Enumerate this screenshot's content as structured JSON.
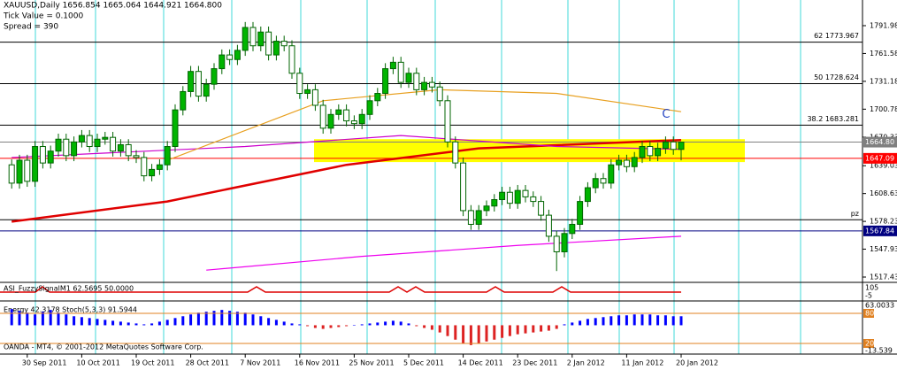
{
  "chart_data": {
    "type": "candlestick",
    "title": "XAUUSD,Daily  1656.854 1665.064 1644.921 1664.800",
    "info": [
      "Tick Value = 0.1000",
      "Spread = 390"
    ],
    "categories": [
      null,
      null,
      "30 Sep 2011",
      null,
      null,
      null,
      null,
      null,
      null,
      "10 Oct 2011",
      null,
      null,
      null,
      null,
      null,
      null,
      "19 Oct 2011",
      null,
      null,
      null,
      null,
      null,
      null,
      "28 Oct 2011",
      null,
      null,
      null,
      null,
      null,
      null,
      "7 Nov 2011",
      null,
      null,
      null,
      null,
      null,
      null,
      "16 Nov 2011",
      null,
      null,
      null,
      null,
      null,
      null,
      "25 Nov 2011",
      null,
      null,
      null,
      null,
      null,
      null,
      "5 Dec 2011",
      null,
      null,
      null,
      null,
      null,
      null,
      "14 Dec 2011",
      null,
      null,
      null,
      null,
      null,
      null,
      "23 Dec 2011",
      null,
      null,
      null,
      null,
      null,
      null,
      "2 Jan 2012",
      null,
      null,
      null,
      null,
      null,
      null,
      "11 Jan 2012",
      null,
      null,
      null,
      null,
      null,
      null,
      "20 Jan 2012"
    ],
    "open": [
      1640,
      1620,
      1645,
      1622,
      1660,
      1642,
      1655,
      1668,
      1650,
      1665,
      1672,
      1660,
      1668,
      1670,
      1655,
      1662,
      1650,
      1648,
      1628,
      1635,
      1640,
      1660,
      1700,
      1720,
      1742,
      1715,
      1728,
      1745,
      1760,
      1755,
      1765,
      1790,
      1770,
      1785,
      1760,
      1775,
      1770,
      1740,
      1718,
      1722,
      1705,
      1680,
      1695,
      1700,
      1688,
      1685,
      1695,
      1710,
      1718,
      1745,
      1752,
      1730,
      1740,
      1722,
      1730,
      1725,
      1710,
      1665,
      1642,
      1590,
      1575,
      1590,
      1595,
      1602,
      1610,
      1598,
      1612,
      1605,
      1600,
      1585,
      1562,
      1545,
      1565,
      1575,
      1600,
      1615,
      1625,
      1620,
      1640,
      1645,
      1638,
      1648,
      1660,
      1650,
      1658,
      1665,
      1656.854
    ],
    "high": [
      1646,
      1651,
      1651,
      1666,
      1666,
      1661,
      1674,
      1674,
      1671,
      1678,
      1678,
      1674,
      1676,
      1676,
      1668,
      1668,
      1656,
      1654,
      1641,
      1646,
      1666,
      1706,
      1726,
      1748,
      1748,
      1734,
      1751,
      1766,
      1766,
      1771,
      1796,
      1796,
      1791,
      1791,
      1781,
      1781,
      1776,
      1746,
      1728,
      1728,
      1711,
      1701,
      1706,
      1706,
      1694,
      1701,
      1716,
      1724,
      1751,
      1758,
      1758,
      1746,
      1746,
      1736,
      1736,
      1731,
      1716,
      1671,
      1648,
      1596,
      1596,
      1601,
      1608,
      1616,
      1616,
      1618,
      1618,
      1611,
      1606,
      1591,
      1568,
      1571,
      1581,
      1606,
      1621,
      1631,
      1631,
      1646,
      1651,
      1651,
      1654,
      1666,
      1666,
      1664,
      1671,
      1671,
      1665.064
    ],
    "low": [
      1614,
      1614,
      1616,
      1616,
      1636,
      1636,
      1649,
      1644,
      1644,
      1659,
      1654,
      1654,
      1662,
      1649,
      1649,
      1644,
      1642,
      1622,
      1622,
      1629,
      1634,
      1654,
      1694,
      1714,
      1709,
      1709,
      1722,
      1739,
      1749,
      1749,
      1759,
      1764,
      1764,
      1754,
      1754,
      1764,
      1734,
      1712,
      1712,
      1699,
      1674,
      1674,
      1689,
      1682,
      1679,
      1679,
      1689,
      1704,
      1712,
      1739,
      1724,
      1724,
      1716,
      1716,
      1719,
      1704,
      1659,
      1636,
      1584,
      1569,
      1569,
      1584,
      1589,
      1596,
      1592,
      1592,
      1599,
      1594,
      1579,
      1556,
      1524,
      1539,
      1559,
      1569,
      1594,
      1609,
      1614,
      1614,
      1634,
      1632,
      1632,
      1642,
      1644,
      1644,
      1652,
      1651,
      1644.921
    ],
    "close": [
      1620,
      1645,
      1622,
      1660,
      1642,
      1655,
      1668,
      1650,
      1665,
      1672,
      1660,
      1668,
      1670,
      1655,
      1662,
      1650,
      1648,
      1628,
      1635,
      1640,
      1660,
      1700,
      1720,
      1742,
      1715,
      1728,
      1745,
      1760,
      1755,
      1765,
      1790,
      1770,
      1785,
      1760,
      1775,
      1770,
      1740,
      1718,
      1722,
      1705,
      1680,
      1695,
      1700,
      1688,
      1685,
      1695,
      1710,
      1718,
      1745,
      1752,
      1730,
      1740,
      1722,
      1730,
      1725,
      1710,
      1665,
      1642,
      1590,
      1575,
      1590,
      1595,
      1602,
      1610,
      1598,
      1612,
      1605,
      1600,
      1585,
      1562,
      1545,
      1565,
      1575,
      1600,
      1615,
      1625,
      1620,
      1640,
      1645,
      1638,
      1648,
      1660,
      1650,
      1658,
      1665,
      1656.854,
      1664.8
    ],
    "colors": {
      "up": "#00b400",
      "down": "#ffffff",
      "wick": "#006400"
    },
    "ylim": [
      1512.6,
      1820.0
    ],
    "yticks": [
      1517.43,
      1547.93,
      1578.23,
      1608.63,
      1639.03,
      1670.33,
      1700.78,
      1731.18,
      1761.58,
      1791.98
    ],
    "zone": {
      "range": [
        1643,
        1668
      ],
      "color": "#ffff00"
    },
    "levels": [
      {
        "value": 1773.967,
        "label": "62 1773.967",
        "color": "#000000"
      },
      {
        "value": 1728.624,
        "label": "50 1728.624",
        "color": "#000000"
      },
      {
        "value": 1683.281,
        "label": "38.2 1683.281",
        "color": "#000000"
      },
      {
        "value": 1580,
        "label": "pz",
        "color": "#000000"
      },
      {
        "value": 1647.09,
        "label": "1647.09",
        "color": "#ff0000"
      },
      {
        "value": 1567.84,
        "label": "1567.84",
        "color": "#000080"
      },
      {
        "value": 1664.8,
        "label": "1664.80",
        "color": "#808080"
      }
    ],
    "overlays": [
      {
        "color": "#e00000",
        "x": [
          0,
          20,
          43,
          60,
          86
        ],
        "values": [
          1578,
          1600,
          1640,
          1658,
          1667
        ]
      },
      {
        "color": "#cc00cc",
        "x": [
          0,
          30,
          50,
          70,
          86
        ],
        "values": [
          1648,
          1660,
          1672,
          1660,
          1657
        ]
      },
      {
        "color": "#e8a020",
        "x": [
          20,
          40,
          55,
          70,
          86
        ],
        "values": [
          1645,
          1710,
          1722,
          1718,
          1698
        ]
      },
      {
        "color": "#ee00ee",
        "x": [
          25,
          45,
          65,
          86
        ],
        "values": [
          1525,
          1540,
          1552,
          1562
        ]
      }
    ],
    "annotations": [
      {
        "text": "C",
        "x": 84,
        "y": 1695
      }
    ],
    "signal": {
      "title": "ASI_FuzzySignalM1 62.5695 50.0000",
      "labels": [
        "105",
        "-5"
      ]
    },
    "energy": {
      "title": "Energy 42.3178 Stoch(5,3,3) 91.5944",
      "labels": [
        "63.0033",
        "80",
        "20",
        "-13.539"
      ],
      "ylim": [
        -30,
        25
      ],
      "values": [
        18,
        16,
        14,
        12,
        15,
        17,
        14,
        12,
        10,
        9,
        8,
        7,
        6,
        5,
        4,
        3,
        2,
        1,
        2,
        4,
        6,
        8,
        10,
        12,
        14,
        15,
        16,
        17,
        16,
        15,
        14,
        12,
        10,
        8,
        6,
        4,
        2,
        1,
        -1,
        -3,
        -4,
        -3,
        -2,
        -1,
        0,
        1,
        2,
        3,
        4,
        5,
        4,
        2,
        -1,
        -3,
        -5,
        -8,
        -12,
        -16,
        -20,
        -22,
        -20,
        -18,
        -16,
        -14,
        -12,
        -10,
        -9,
        -8,
        -7,
        -6,
        -4,
        1,
        3,
        5,
        7,
        8,
        9,
        10,
        11,
        11,
        12,
        12,
        12,
        11,
        11,
        10,
        10
      ],
      "colors": {
        "up": "#0000ff",
        "down": "#dd2222"
      }
    },
    "copyright": "OANDA - MT4, © 2001-2012 MetaQuotes Software Corp."
  }
}
